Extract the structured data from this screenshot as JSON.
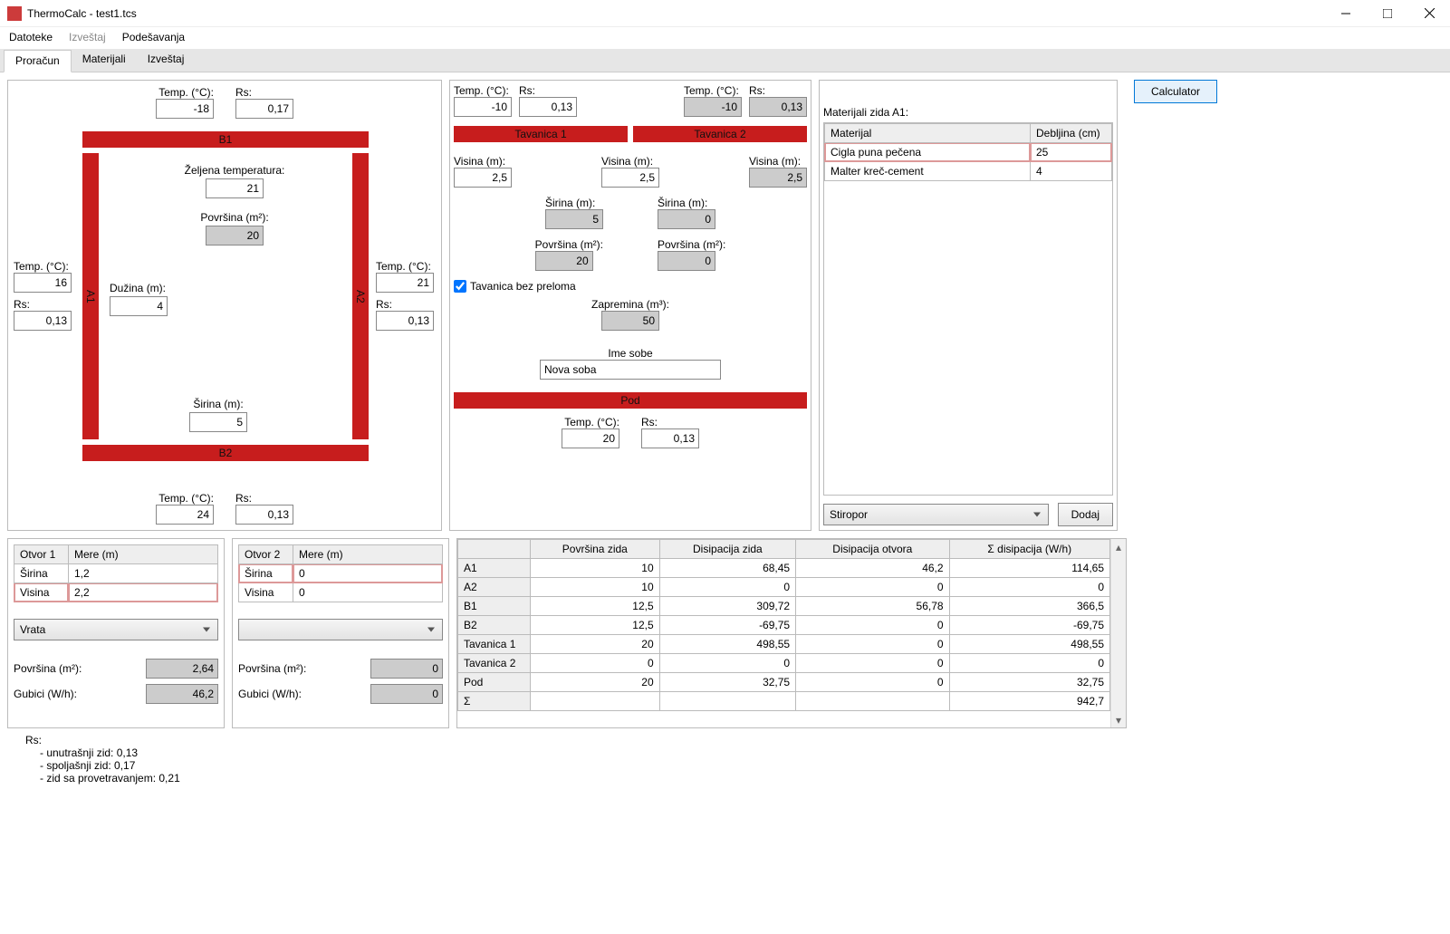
{
  "window": {
    "title": "ThermoCalc - test1.tcs"
  },
  "menu": {
    "file": "Datoteke",
    "report": "Izveštaj",
    "settings": "Podešavanja"
  },
  "tabs": {
    "calc": "Proračun",
    "mat": "Materijali",
    "rep": "Izveštaj"
  },
  "labels": {
    "temp": "Temp. (°C):",
    "rs": "Rs:",
    "visina": "Visina (m):",
    "sirina": "Širina (m):",
    "povrsina": "Površina (m²):",
    "duzina": "Dužina (m):",
    "zeljena": "Željena temperatura:",
    "zapremina": "Zapremina (m³):",
    "imesobe": "Ime sobe",
    "gubici": "Gubici (W/h):",
    "tavcheck": "Tavanica bez preloma",
    "mere": "Mere (m)",
    "otvor1": "Otvor 1",
    "otvor2": "Otvor 2",
    "sirina_s": "Širina",
    "visina_s": "Visina",
    "mat_title": "Materijali zida A1:",
    "mat_col1": "Materijal",
    "mat_col2": "Debljina (cm)",
    "dodaj": "Dodaj",
    "calc": "Calculator"
  },
  "bars": {
    "b1": "B1",
    "b2": "B2",
    "a1": "A1",
    "a2": "A2",
    "tav1": "Tavanica 1",
    "tav2": "Tavanica 2",
    "pod": "Pod"
  },
  "p1": {
    "top_temp": "-18",
    "top_rs": "0,17",
    "zeljena": "21",
    "povrsina": "20",
    "duzina": "4",
    "sirina": "5",
    "left_temp": "16",
    "left_rs": "0,13",
    "right_temp": "21",
    "right_rs": "0,13",
    "bot_temp": "24",
    "bot_rs": "0,13"
  },
  "p2": {
    "top_temp": "-10",
    "top_rs": "0,13",
    "top_temp2": "-10",
    "top_rs2": "0,13",
    "vis1": "2,5",
    "vis2": "2,5",
    "vis3": "2,5",
    "sir1": "5",
    "sir2": "0",
    "pov1": "20",
    "pov2": "0",
    "zap": "50",
    "ime": "Nova soba",
    "bot_temp": "20",
    "bot_rs": "0,13"
  },
  "mat": {
    "rows": [
      {
        "m": "Cigla puna pečena",
        "d": "25"
      },
      {
        "m": "Malter kreč-cement",
        "d": "4"
      }
    ],
    "sel": "Stiropor"
  },
  "op1": {
    "sel": "Vrata",
    "sir": "1,2",
    "vis": "2,2",
    "pov": "2,64",
    "gub": "46,2"
  },
  "op2": {
    "sel": "",
    "sir": "0",
    "vis": "0",
    "pov": "0",
    "gub": "0"
  },
  "results": {
    "cols": [
      "",
      "Površina zida",
      "Disipacija zida",
      "Disipacija otvora",
      "Σ disipacija (W/h)"
    ],
    "rows": [
      [
        "A1",
        "10",
        "68,45",
        "46,2",
        "114,65"
      ],
      [
        "A2",
        "10",
        "0",
        "0",
        "0"
      ],
      [
        "B1",
        "12,5",
        "309,72",
        "56,78",
        "366,5"
      ],
      [
        "B2",
        "12,5",
        "-69,75",
        "0",
        "-69,75"
      ],
      [
        "Tavanica 1",
        "20",
        "498,55",
        "0",
        "498,55"
      ],
      [
        "Tavanica 2",
        "0",
        "0",
        "0",
        "0"
      ],
      [
        "Pod",
        "20",
        "32,75",
        "0",
        "32,75"
      ],
      [
        "Σ",
        "",
        "",
        "",
        "942,7"
      ]
    ]
  },
  "foot": {
    "rs": "Rs:",
    "l1": "- unutrašnji zid: 0,13",
    "l2": "- spoljašnji zid: 0,17",
    "l3": "- zid sa provetravanjem: 0,21"
  }
}
